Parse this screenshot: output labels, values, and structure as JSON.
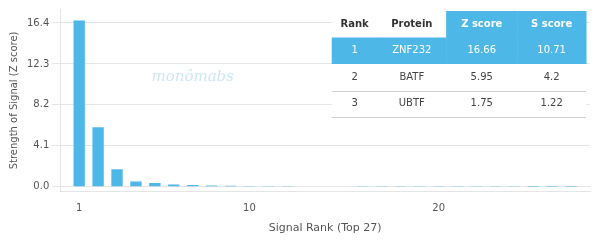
{
  "chart_data": {
    "type": "bar",
    "xlabel": "Signal Rank (Top 27)",
    "ylabel": "Strength of Signal (Z score)",
    "x": [
      1,
      2,
      3,
      4,
      5,
      6,
      7,
      8,
      9,
      10,
      11,
      12,
      13,
      14,
      15,
      16,
      17,
      18,
      19,
      20,
      21,
      22,
      23,
      24,
      25,
      26,
      27
    ],
    "values": [
      16.66,
      5.95,
      1.75,
      0.53,
      0.38,
      0.22,
      0.18,
      0.14,
      0.11,
      0.09,
      0.08,
      0.07,
      0.06,
      0.05,
      0.05,
      0.04,
      0.04,
      0.03,
      0.03,
      0.03,
      0.02,
      0.02,
      0.02,
      0.02,
      0.01,
      0.01,
      0.01
    ],
    "color": "#4db8e8",
    "xlim": [
      0,
      28
    ],
    "xticks": [
      1,
      10,
      20
    ],
    "ylim": [
      -0.5,
      17.8
    ],
    "yticks": [
      {
        "value": 0.0,
        "label": "0.0"
      },
      4.1,
      8.2,
      12.3,
      16.4
    ],
    "grid": "y",
    "annotations": [
      "monômabs"
    ],
    "table": {
      "columns": [
        "Rank",
        "Protein",
        "Z score",
        "S score"
      ],
      "rows": [
        [
          "1",
          "ZNF232",
          "16.66",
          "10.71"
        ],
        [
          "2",
          "BATF",
          "5.95",
          "4.2"
        ],
        [
          "3",
          "UBTF",
          "1.75",
          "1.22"
        ]
      ]
    }
  }
}
